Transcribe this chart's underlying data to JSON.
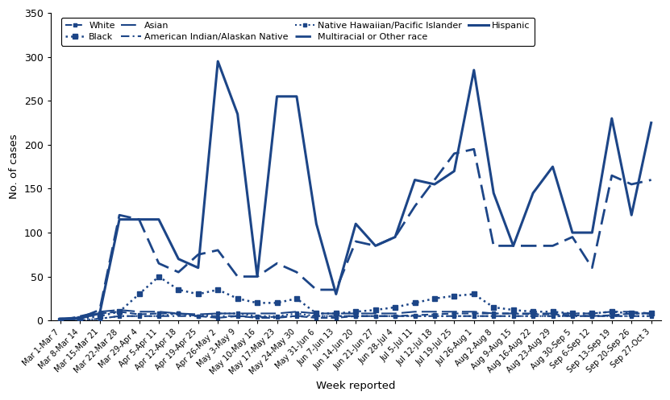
{
  "weeks": [
    "Mar 1-Mar 7",
    "Mar 8-Mar 14",
    "Mar 15-Mar 21",
    "Mar 22-Mar 28",
    "Mar 29-Apr 4",
    "Apr 5-Apr 11",
    "Apr 12-Apr 18",
    "Apr 19-Apr 25",
    "Apr 26-May 2",
    "May 3-May 9",
    "May 10-May 16",
    "May 17-May 23",
    "May 24-May 30",
    "May 31-Jun 6",
    "Jun 7-Jun 13",
    "Jun 14-Jun 20",
    "Jun 21-Jun 27",
    "Jun 28-Jul 4",
    "Jul 5-Jul 11",
    "Jul 12-Jul 18",
    "Jul 19-Jul 25",
    "Jul 26-Aug 1",
    "Aug 2-Aug 8",
    "Aug 9-Aug 15",
    "Aug 16-Aug 22",
    "Aug 23-Aug 29",
    "Aug 30-Sep 5",
    "Sep 6-Sep 12",
    "Sep 13-Sep 19",
    "Sep 20-Sep 26",
    "Sep 27-Oct 3"
  ],
  "Hispanic": [
    2,
    3,
    8,
    115,
    115,
    115,
    70,
    60,
    295,
    235,
    50,
    255,
    255,
    110,
    30,
    110,
    85,
    95,
    160,
    155,
    170,
    285,
    145,
    85,
    145,
    175,
    100,
    100,
    230,
    120,
    225
  ],
  "Multiracial": [
    0,
    3,
    12,
    120,
    115,
    65,
    55,
    75,
    80,
    50,
    50,
    65,
    55,
    35,
    35,
    90,
    85,
    95,
    130,
    160,
    190,
    195,
    85,
    85,
    85,
    85,
    95,
    60,
    165,
    155,
    160
  ],
  "Black": [
    0,
    2,
    5,
    10,
    30,
    50,
    35,
    30,
    35,
    25,
    20,
    20,
    25,
    8,
    8,
    10,
    12,
    15,
    20,
    25,
    28,
    30,
    15,
    12,
    10,
    10,
    8,
    8,
    10,
    8,
    8
  ],
  "Asian": [
    0,
    5,
    10,
    12,
    10,
    10,
    8,
    7,
    8,
    8,
    8,
    8,
    10,
    8,
    8,
    8,
    8,
    8,
    10,
    10,
    10,
    10,
    8,
    8,
    8,
    8,
    8,
    8,
    10,
    10,
    8
  ],
  "White": [
    0,
    2,
    8,
    10,
    7,
    8,
    8,
    5,
    3,
    5,
    4,
    4,
    5,
    3,
    3,
    5,
    5,
    5,
    6,
    7,
    8,
    8,
    8,
    8,
    7,
    7,
    6,
    5,
    6,
    8,
    8
  ],
  "AmIndian": [
    0,
    0,
    2,
    5,
    5,
    5,
    5,
    5,
    5,
    5,
    3,
    3,
    5,
    5,
    5,
    5,
    5,
    5,
    5,
    5,
    5,
    5,
    5,
    5,
    5,
    5,
    5,
    5,
    5,
    5,
    5
  ],
  "NativeHaw": [
    0,
    0,
    2,
    5,
    5,
    5,
    8,
    5,
    8,
    8,
    5,
    5,
    8,
    5,
    5,
    5,
    5,
    5,
    5,
    5,
    5,
    5,
    5,
    5,
    5,
    5,
    5,
    5,
    5,
    5,
    5
  ],
  "ylim": [
    0,
    350
  ],
  "yticks": [
    0,
    50,
    100,
    150,
    200,
    250,
    300,
    350
  ],
  "ylabel": "No. of cases",
  "xlabel": "Week reported",
  "color": "#1c4587",
  "legend_row1": [
    "White",
    "Black",
    "Asian",
    "American Indian/Alaskan Native"
  ],
  "legend_row2": [
    "Native Hawaiian/Pacific Islander",
    "Multiracial or Other race",
    "Hispanic"
  ]
}
